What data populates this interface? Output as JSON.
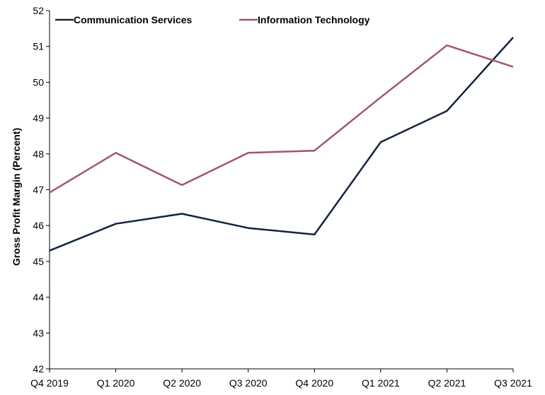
{
  "chart_data": {
    "type": "line",
    "categories": [
      "Q4 2019",
      "Q1 2020",
      "Q2 2020",
      "Q3 2020",
      "Q4 2020",
      "Q1 2021",
      "Q2 2021",
      "Q3 2021"
    ],
    "series": [
      {
        "name": "Communication Services",
        "color": "#14233f",
        "values": [
          45.3,
          46.05,
          46.33,
          45.93,
          45.75,
          48.33,
          49.2,
          51.25
        ]
      },
      {
        "name": "Information Technology",
        "color": "#a0566c",
        "values": [
          46.92,
          48.03,
          47.13,
          48.03,
          48.09,
          49.58,
          51.03,
          50.43
        ]
      }
    ],
    "xlabel": "",
    "ylabel": "Gross Profit Margin (Percent)",
    "ylim": [
      42,
      52
    ],
    "yticks": [
      42,
      43,
      44,
      45,
      46,
      47,
      48,
      49,
      50,
      51,
      52
    ],
    "grid": false,
    "legend_position": "top-left"
  }
}
